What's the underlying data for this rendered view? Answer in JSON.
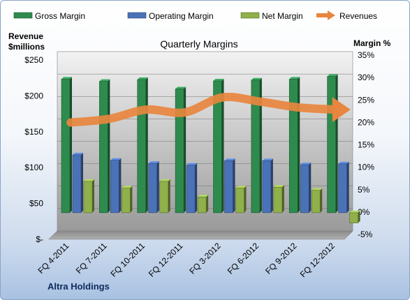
{
  "chart_data": {
    "type": "bar",
    "title": "Quarterly Margins",
    "company": "Altra Holdings",
    "y_left_label_lines": [
      "Revenue",
      "$millions"
    ],
    "y_right_label": "Margin %",
    "categories": [
      "FQ 4-2011",
      "FQ 7-2011",
      "FQ 10-2011",
      "FQ 12-2011",
      "FQ 3-2012",
      "FQ 6-2012",
      "FQ 9-2012",
      "FQ 12-2012"
    ],
    "left_axis": {
      "min": 0,
      "max": 250,
      "ticks": [
        0,
        50,
        100,
        150,
        200,
        250
      ],
      "tick_labels": [
        "$-",
        "$50",
        "$100",
        "$150",
        "$200",
        "$250"
      ]
    },
    "right_axis": {
      "min": -5,
      "max": 35,
      "ticks": [
        -5,
        0,
        5,
        10,
        15,
        20,
        25,
        30,
        35
      ],
      "tick_labels": [
        "-5%",
        "0%",
        "5%",
        "10%",
        "15%",
        "20%",
        "25%",
        "30%",
        "35%"
      ]
    },
    "legend_position": "top",
    "series": [
      {
        "name": "Gross Margin",
        "axis": "right",
        "kind": "bar",
        "color": "#2e8b4e",
        "values": [
          29.8,
          29.3,
          29.7,
          27.6,
          29.4,
          29.6,
          29.8,
          30.4
        ]
      },
      {
        "name": "Operating Margin",
        "axis": "right",
        "kind": "bar",
        "color": "#4a72b8",
        "values": [
          12.9,
          11.7,
          11.0,
          10.6,
          11.6,
          11.6,
          10.7,
          10.9
        ]
      },
      {
        "name": "Net Margin",
        "axis": "right",
        "kind": "bar",
        "color": "#8fb04a",
        "values": [
          7.0,
          5.5,
          7.0,
          3.5,
          5.5,
          5.7,
          5.0,
          -2.3
        ]
      },
      {
        "name": "Revenues",
        "axis": "left",
        "kind": "line",
        "color": "#e8853e",
        "values": [
          157,
          162,
          175,
          171,
          192,
          186,
          178,
          175
        ]
      }
    ]
  }
}
